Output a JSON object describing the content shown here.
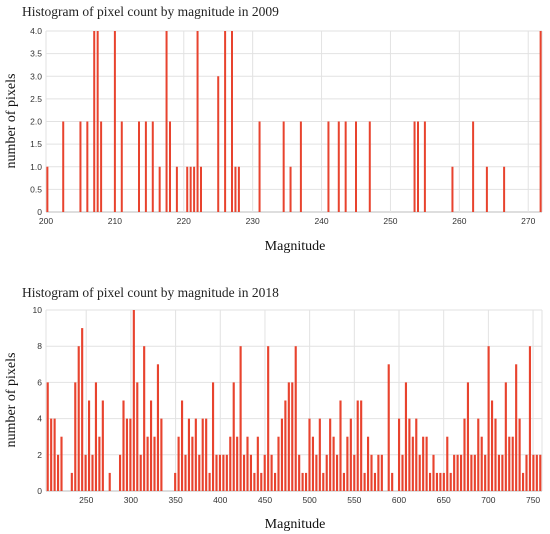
{
  "chart_data": [
    {
      "type": "bar",
      "title": "Histogram of pixel count by magnitude in 2009",
      "xlabel": "Magnitude",
      "ylabel": "number of pixels",
      "xlim": [
        200,
        272
      ],
      "ylim": [
        0,
        4
      ],
      "xticks": [
        200,
        210,
        220,
        230,
        240,
        250,
        260,
        270
      ],
      "yticks": [
        "0",
        "0.5",
        "1.0",
        "1.5",
        "2.0",
        "2.5",
        "3.0",
        "3.5",
        "4.0"
      ],
      "yticks_values": [
        0,
        0.5,
        1,
        1.5,
        2,
        2.5,
        3,
        3.5,
        4
      ],
      "grid": true,
      "color": "#e8432e",
      "bars": [
        {
          "x": 200.2,
          "y": 1
        },
        {
          "x": 202.5,
          "y": 2
        },
        {
          "x": 205.0,
          "y": 2
        },
        {
          "x": 206.0,
          "y": 2
        },
        {
          "x": 207.0,
          "y": 4
        },
        {
          "x": 207.5,
          "y": 4
        },
        {
          "x": 208.0,
          "y": 2
        },
        {
          "x": 210.0,
          "y": 4
        },
        {
          "x": 211.0,
          "y": 2
        },
        {
          "x": 213.5,
          "y": 2
        },
        {
          "x": 214.5,
          "y": 2
        },
        {
          "x": 215.5,
          "y": 2
        },
        {
          "x": 216.5,
          "y": 1
        },
        {
          "x": 217.5,
          "y": 4
        },
        {
          "x": 218.0,
          "y": 2
        },
        {
          "x": 219.0,
          "y": 1
        },
        {
          "x": 220.5,
          "y": 1
        },
        {
          "x": 221.0,
          "y": 1
        },
        {
          "x": 221.5,
          "y": 1
        },
        {
          "x": 222.0,
          "y": 4
        },
        {
          "x": 222.5,
          "y": 1
        },
        {
          "x": 225.0,
          "y": 3
        },
        {
          "x": 226.0,
          "y": 4
        },
        {
          "x": 227.0,
          "y": 4
        },
        {
          "x": 227.5,
          "y": 1
        },
        {
          "x": 228.0,
          "y": 1
        },
        {
          "x": 231.0,
          "y": 2
        },
        {
          "x": 234.5,
          "y": 2
        },
        {
          "x": 235.5,
          "y": 1
        },
        {
          "x": 237.0,
          "y": 2
        },
        {
          "x": 241.0,
          "y": 2
        },
        {
          "x": 242.5,
          "y": 2
        },
        {
          "x": 243.5,
          "y": 2
        },
        {
          "x": 245.0,
          "y": 2
        },
        {
          "x": 247.0,
          "y": 2
        },
        {
          "x": 253.5,
          "y": 2
        },
        {
          "x": 254.0,
          "y": 2
        },
        {
          "x": 255.0,
          "y": 2
        },
        {
          "x": 259.0,
          "y": 1
        },
        {
          "x": 262.0,
          "y": 2
        },
        {
          "x": 264.0,
          "y": 1
        },
        {
          "x": 266.5,
          "y": 1
        },
        {
          "x": 271.8,
          "y": 4
        }
      ]
    },
    {
      "type": "bar",
      "title": "Histogram of pixel count by magnitude in 2018",
      "xlabel": "Magnitude",
      "ylabel": "number of pixels",
      "xlim": [
        205,
        760
      ],
      "ylim": [
        0,
        10
      ],
      "xticks": [
        250,
        300,
        350,
        400,
        450,
        500,
        550,
        600,
        650,
        700,
        750
      ],
      "yticks": [
        "0",
        "2",
        "4",
        "6",
        "8",
        "10"
      ],
      "yticks_values": [
        0,
        2,
        4,
        6,
        8,
        10
      ],
      "grid": true,
      "color": "#e8432e",
      "values": [
        6,
        4,
        4,
        2,
        3,
        0,
        0,
        1,
        6,
        8,
        9,
        2,
        5,
        2,
        6,
        3,
        5,
        0,
        1,
        0,
        0,
        2,
        5,
        4,
        4,
        10,
        6,
        2,
        8,
        3,
        5,
        3,
        7,
        4,
        0,
        0,
        0,
        1,
        3,
        5,
        2,
        4,
        3,
        4,
        2,
        4,
        4,
        1,
        6,
        2,
        2,
        2,
        2,
        3,
        6,
        3,
        8,
        2,
        3,
        2,
        1,
        3,
        1,
        2,
        8,
        2,
        1,
        3,
        4,
        5,
        6,
        6,
        8,
        2,
        1,
        1,
        4,
        3,
        2,
        4,
        1,
        2,
        4,
        3,
        2,
        5,
        1,
        3,
        4,
        2,
        5,
        5,
        1,
        3,
        2,
        1,
        2,
        2,
        0,
        7,
        1,
        0,
        4,
        2,
        6,
        4,
        3,
        4,
        2,
        3,
        3,
        1,
        2,
        1,
        1,
        1,
        3,
        1,
        2,
        2,
        2,
        4,
        6,
        2,
        2,
        4,
        3,
        2,
        8,
        5,
        4,
        2,
        2,
        6,
        3,
        3,
        7,
        4,
        1,
        2,
        8,
        2,
        2,
        2
      ]
    }
  ]
}
